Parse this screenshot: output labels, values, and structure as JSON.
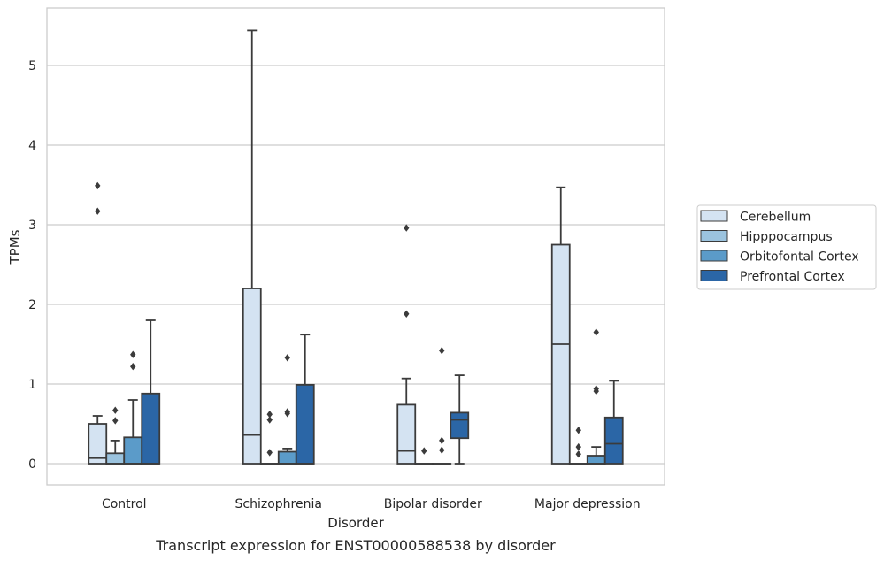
{
  "chart_data": {
    "type": "box",
    "title": "",
    "caption": "Transcript expression for ENST00000588538 by disorder",
    "xlabel": "Disorder",
    "ylabel": "TPMs",
    "ylim": [
      -0.27,
      5.73
    ],
    "yticks": [
      0,
      1,
      2,
      3,
      4,
      5
    ],
    "categories": [
      "Control",
      "Schizophrenia",
      "Bipolar disorder",
      "Major depression"
    ],
    "grid": "horizontal",
    "legend_position": "right",
    "series": [
      {
        "name": "Cerebellum",
        "color": "#d4e3f2",
        "boxes": [
          {
            "whisker_low": 0.0,
            "q1": 0.0,
            "median": 0.07,
            "q3": 0.5,
            "whisker_high": 0.6,
            "outliers": [
              3.17,
              3.49
            ]
          },
          {
            "whisker_low": 0.0,
            "q1": 0.0,
            "median": 0.36,
            "q3": 2.2,
            "whisker_high": 5.44,
            "outliers": []
          },
          {
            "whisker_low": 0.0,
            "q1": 0.0,
            "median": 0.16,
            "q3": 0.74,
            "whisker_high": 1.07,
            "outliers": [
              1.88,
              2.96
            ]
          },
          {
            "whisker_low": 0.0,
            "q1": 0.0,
            "median": 1.5,
            "q3": 2.75,
            "whisker_high": 3.47,
            "outliers": []
          }
        ]
      },
      {
        "name": "Hipppocampus",
        "color": "#9bc3de",
        "boxes": [
          {
            "whisker_low": 0.0,
            "q1": 0.0,
            "median": 0.0,
            "q3": 0.13,
            "whisker_high": 0.29,
            "outliers": [
              0.54,
              0.67
            ]
          },
          {
            "whisker_low": 0.0,
            "q1": 0.0,
            "median": 0.0,
            "q3": 0.0,
            "whisker_high": 0.0,
            "outliers": [
              0.14,
              0.55,
              0.62
            ]
          },
          {
            "whisker_low": 0.0,
            "q1": 0.0,
            "median": 0.0,
            "q3": 0.0,
            "whisker_high": 0.0,
            "outliers": [
              0.16
            ]
          },
          {
            "whisker_low": 0.0,
            "q1": 0.0,
            "median": 0.0,
            "q3": 0.0,
            "whisker_high": 0.0,
            "outliers": [
              0.12,
              0.21,
              0.42
            ]
          }
        ]
      },
      {
        "name": "Orbitofontal Cortex",
        "color": "#5b9bc9",
        "boxes": [
          {
            "whisker_low": 0.0,
            "q1": 0.0,
            "median": 0.0,
            "q3": 0.33,
            "whisker_high": 0.8,
            "outliers": [
              1.22,
              1.37
            ]
          },
          {
            "whisker_low": 0.0,
            "q1": 0.0,
            "median": 0.0,
            "q3": 0.15,
            "whisker_high": 0.19,
            "outliers": [
              0.63,
              0.65,
              1.33
            ]
          },
          {
            "whisker_low": 0.0,
            "q1": 0.0,
            "median": 0.0,
            "q3": 0.0,
            "whisker_high": 0.0,
            "outliers": [
              0.17,
              0.29,
              1.42
            ]
          },
          {
            "whisker_low": 0.0,
            "q1": 0.0,
            "median": 0.0,
            "q3": 0.1,
            "whisker_high": 0.21,
            "outliers": [
              0.91,
              0.94,
              1.65
            ]
          }
        ]
      },
      {
        "name": "Prefrontal Cortex",
        "color": "#2b66a6",
        "boxes": [
          {
            "whisker_low": 0.0,
            "q1": 0.0,
            "median": 0.0,
            "q3": 0.88,
            "whisker_high": 1.8,
            "outliers": []
          },
          {
            "whisker_low": 0.0,
            "q1": 0.0,
            "median": 0.0,
            "q3": 0.99,
            "whisker_high": 1.62,
            "outliers": []
          },
          {
            "whisker_low": 0.0,
            "q1": 0.32,
            "median": 0.55,
            "q3": 0.64,
            "whisker_high": 1.11,
            "outliers": []
          },
          {
            "whisker_low": 0.0,
            "q1": 0.0,
            "median": 0.25,
            "q3": 0.58,
            "whisker_high": 1.04,
            "outliers": []
          }
        ]
      }
    ]
  }
}
